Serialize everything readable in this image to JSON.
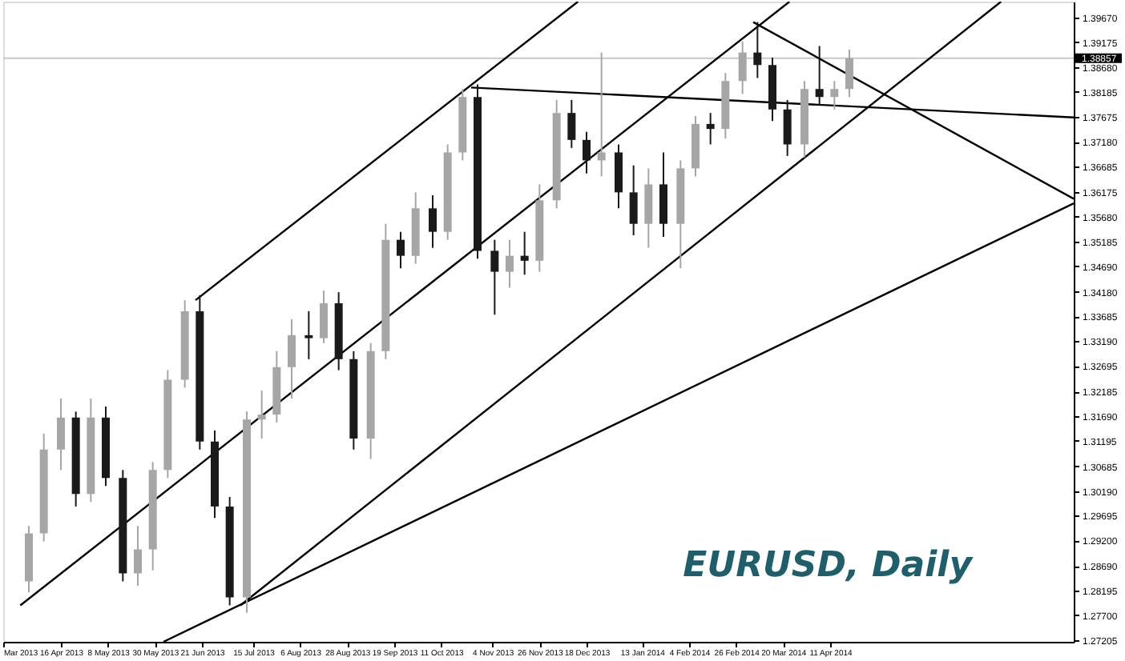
{
  "chart_data": {
    "type": "candlestick",
    "annotations": [
      "EURUSD, Daily"
    ],
    "x": [
      "2013-04-01",
      "2013-04-08",
      "2013-04-16",
      "2013-04-23",
      "2013-04-30",
      "2013-05-07",
      "2013-05-15",
      "2013-05-22",
      "2013-05-29",
      "2013-06-05",
      "2013-06-13",
      "2013-06-20",
      "2013-06-27",
      "2013-07-04",
      "2013-07-12",
      "2013-07-19",
      "2013-07-26",
      "2013-08-02",
      "2013-08-10",
      "2013-08-17",
      "2013-08-24",
      "2013-08-31",
      "2013-09-08",
      "2013-09-15",
      "2013-09-22",
      "2013-09-29",
      "2013-10-07",
      "2013-10-14",
      "2013-10-21",
      "2013-10-28",
      "2013-11-05",
      "2013-11-12",
      "2013-11-19",
      "2013-11-26",
      "2013-12-04",
      "2013-12-11",
      "2013-12-18",
      "2013-12-25",
      "2014-01-02",
      "2014-01-09",
      "2014-01-16",
      "2014-01-23",
      "2014-01-31",
      "2014-02-07",
      "2014-02-14",
      "2014-02-21",
      "2014-03-01",
      "2014-03-08",
      "2014-03-15",
      "2014-03-22",
      "2014-03-30",
      "2014-04-06",
      "2014-04-13",
      "2014-04-20"
    ],
    "ohlc": [
      [
        1.2838,
        1.2949,
        1.2816,
        1.2934
      ],
      [
        1.2934,
        1.3134,
        1.2918,
        1.3102
      ],
      [
        1.3102,
        1.3204,
        1.3061,
        1.3166
      ],
      [
        1.3166,
        1.3178,
        1.2988,
        1.3013
      ],
      [
        1.3013,
        1.3204,
        1.2997,
        1.3166
      ],
      [
        1.3166,
        1.3188,
        1.3029,
        1.3045
      ],
      [
        1.3045,
        1.3061,
        1.2838,
        1.2854
      ],
      [
        1.2854,
        1.2949,
        1.2829,
        1.2902
      ],
      [
        1.2902,
        1.3077,
        1.286,
        1.3061
      ],
      [
        1.3061,
        1.3261,
        1.3045,
        1.3242
      ],
      [
        1.3242,
        1.3401,
        1.3226,
        1.3379
      ],
      [
        1.3379,
        1.3411,
        1.3102,
        1.3118
      ],
      [
        1.3118,
        1.314,
        1.2965,
        1.2988
      ],
      [
        1.2988,
        1.3007,
        1.279,
        1.2806
      ],
      [
        1.2806,
        1.3178,
        1.2775,
        1.3162
      ],
      [
        1.3162,
        1.322,
        1.3124,
        1.3172
      ],
      [
        1.3172,
        1.3299,
        1.3156,
        1.3267
      ],
      [
        1.3267,
        1.3363,
        1.3204,
        1.3331
      ],
      [
        1.3331,
        1.3379,
        1.3283,
        1.3325
      ],
      [
        1.3325,
        1.342,
        1.3315,
        1.3395
      ],
      [
        1.3395,
        1.3417,
        1.3261,
        1.3283
      ],
      [
        1.3283,
        1.3299,
        1.3102,
        1.3124
      ],
      [
        1.3124,
        1.3315,
        1.3083,
        1.3299
      ],
      [
        1.3299,
        1.3554,
        1.3283,
        1.3522
      ],
      [
        1.3522,
        1.3538,
        1.3465,
        1.349
      ],
      [
        1.349,
        1.3617,
        1.3474,
        1.3585
      ],
      [
        1.3585,
        1.3611,
        1.3506,
        1.3538
      ],
      [
        1.3538,
        1.3713,
        1.3522,
        1.3697
      ],
      [
        1.3697,
        1.3824,
        1.3681,
        1.3808
      ],
      [
        1.3808,
        1.3833,
        1.3484,
        1.35
      ],
      [
        1.35,
        1.3522,
        1.3372,
        1.3458
      ],
      [
        1.3458,
        1.3522,
        1.3426,
        1.349
      ],
      [
        1.349,
        1.3538,
        1.3452,
        1.348
      ],
      [
        1.348,
        1.3633,
        1.3458,
        1.3601
      ],
      [
        1.3601,
        1.3802,
        1.3585,
        1.3776
      ],
      [
        1.3776,
        1.3802,
        1.3706,
        1.3722
      ],
      [
        1.3722,
        1.3738,
        1.3655,
        1.3681
      ],
      [
        1.3681,
        1.3897,
        1.3649,
        1.3697
      ],
      [
        1.3697,
        1.3713,
        1.3585,
        1.3617
      ],
      [
        1.3617,
        1.3671,
        1.3531,
        1.3554
      ],
      [
        1.3554,
        1.3665,
        1.3506,
        1.3633
      ],
      [
        1.3633,
        1.3697,
        1.3528,
        1.3554
      ],
      [
        1.3554,
        1.3681,
        1.3465,
        1.3665
      ],
      [
        1.3665,
        1.377,
        1.3649,
        1.3754
      ],
      [
        1.3754,
        1.3776,
        1.3713,
        1.3744
      ],
      [
        1.3744,
        1.3856,
        1.3725,
        1.384
      ],
      [
        1.384,
        1.3919,
        1.3814,
        1.3897
      ],
      [
        1.3897,
        1.3958,
        1.3846,
        1.3872
      ],
      [
        1.3872,
        1.3887,
        1.376,
        1.3783
      ],
      [
        1.3783,
        1.3802,
        1.369,
        1.3713
      ],
      [
        1.3713,
        1.384,
        1.3687,
        1.3824
      ],
      [
        1.3824,
        1.391,
        1.3792,
        1.3808
      ],
      [
        1.3808,
        1.384,
        1.3783,
        1.3824
      ],
      [
        1.3824,
        1.3903,
        1.3808,
        1.38857
      ]
    ],
    "colors": [
      "#a6a6a6",
      "#a6a6a6",
      "#a6a6a6",
      "#1a1a1a",
      "#a6a6a6",
      "#1a1a1a",
      "#1a1a1a",
      "#a6a6a6",
      "#a6a6a6",
      "#a6a6a6",
      "#a6a6a6",
      "#1a1a1a",
      "#1a1a1a",
      "#1a1a1a",
      "#a6a6a6",
      "#a6a6a6",
      "#a6a6a6",
      "#a6a6a6",
      "#1a1a1a",
      "#a6a6a6",
      "#1a1a1a",
      "#1a1a1a",
      "#a6a6a6",
      "#a6a6a6",
      "#1a1a1a",
      "#a6a6a6",
      "#1a1a1a",
      "#a6a6a6",
      "#a6a6a6",
      "#1a1a1a",
      "#1a1a1a",
      "#a6a6a6",
      "#1a1a1a",
      "#a6a6a6",
      "#a6a6a6",
      "#1a1a1a",
      "#1a1a1a",
      "#a6a6a6",
      "#1a1a1a",
      "#1a1a1a",
      "#a6a6a6",
      "#1a1a1a",
      "#a6a6a6",
      "#a6a6a6",
      "#1a1a1a",
      "#a6a6a6",
      "#a6a6a6",
      "#1a1a1a",
      "#1a1a1a",
      "#1a1a1a",
      "#a6a6a6",
      "#1a1a1a",
      "#a6a6a6",
      "#a6a6a6"
    ],
    "series": [
      {
        "type": "line",
        "color": "#000000",
        "x": [
          "2013-06-18",
          "2013-12-14"
        ],
        "values": [
          1.3401,
          1.3999
        ]
      },
      {
        "type": "line",
        "color": "#000000",
        "x": [
          "2013-03-28",
          "2014-03-23"
        ],
        "values": [
          1.279,
          1.3999
        ]
      },
      {
        "type": "line",
        "color": "#000000",
        "x": [
          "2013-07-09",
          "2014-06-30"
        ],
        "values": [
          1.279,
          1.3999
        ]
      },
      {
        "type": "line",
        "color": "#000000",
        "x": [
          "2013-06-03",
          "2014-08-03"
        ],
        "values": [
          1.2717,
          1.3595
        ]
      },
      {
        "type": "line",
        "color": "#000000",
        "x": [
          "2013-10-25",
          "2014-08-03"
        ],
        "values": [
          1.3827,
          1.3767
        ]
      },
      {
        "type": "line",
        "color": "#000000",
        "x": [
          "2014-03-06",
          "2014-08-03"
        ],
        "values": [
          1.3958,
          1.3604
        ]
      }
    ],
    "ref_lines": [
      {
        "axis": "y",
        "value": 1.38857,
        "label": "1.38857",
        "color": "#c8c8c8"
      }
    ],
    "xlim": [
      "2013-03-20",
      "2014-08-03"
    ],
    "xticks": [
      {
        "value": "2013-03-20",
        "label": "Mar 2013"
      },
      {
        "value": "2013-04-16",
        "label": "16 Apr 2013"
      },
      {
        "value": "2013-05-08",
        "label": "8 May 2013"
      },
      {
        "value": "2013-05-30",
        "label": "30 May 2013"
      },
      {
        "value": "2013-06-21",
        "label": "21 Jun 2013"
      },
      {
        "value": "2013-07-15",
        "label": "15 Jul 2013"
      },
      {
        "value": "2013-08-06",
        "label": "6 Aug 2013"
      },
      {
        "value": "2013-08-28",
        "label": "28 Aug 2013"
      },
      {
        "value": "2013-09-19",
        "label": "19 Sep 2013"
      },
      {
        "value": "2013-10-11",
        "label": "11 Oct 2013"
      },
      {
        "value": "2013-11-04",
        "label": "4 Nov 2013"
      },
      {
        "value": "2013-11-26",
        "label": "26 Nov 2013"
      },
      {
        "value": "2013-12-18",
        "label": "18 Dec 2013"
      },
      {
        "value": "2014-01-13",
        "label": "13 Jan 2014"
      },
      {
        "value": "2014-02-04",
        "label": "4 Feb 2014"
      },
      {
        "value": "2014-02-26",
        "label": "26 Feb 2014"
      },
      {
        "value": "2014-03-20",
        "label": "20 Mar 2014"
      },
      {
        "value": "2014-04-11",
        "label": "11 Apr 2014"
      }
    ],
    "ylim": [
      1.2717,
      1.3999
    ],
    "yticks": [
      {
        "value": 1.3967,
        "label": "1.39670"
      },
      1.39175,
      {
        "value": 1.3868,
        "label": "1.38680"
      },
      1.38185,
      1.37675,
      {
        "value": 1.3718,
        "label": "1.37180"
      },
      1.36685,
      1.36175,
      {
        "value": 1.3568,
        "label": "1.35680"
      },
      1.35185,
      {
        "value": 1.3469,
        "label": "1.34690"
      },
      {
        "value": 1.3418,
        "label": "1.34180"
      },
      1.33685,
      {
        "value": 1.3319,
        "label": "1.33190"
      },
      1.32695,
      1.32185,
      {
        "value": 1.3169,
        "label": "1.31690"
      },
      1.31195,
      1.30685,
      {
        "value": 1.3019,
        "label": "1.30190"
      },
      1.29695,
      {
        "value": 1.292,
        "label": "1.29200"
      },
      {
        "value": 1.2869,
        "label": "1.28690"
      },
      1.28195,
      {
        "value": 1.277,
        "label": "1.27700"
      },
      1.27205
    ]
  }
}
